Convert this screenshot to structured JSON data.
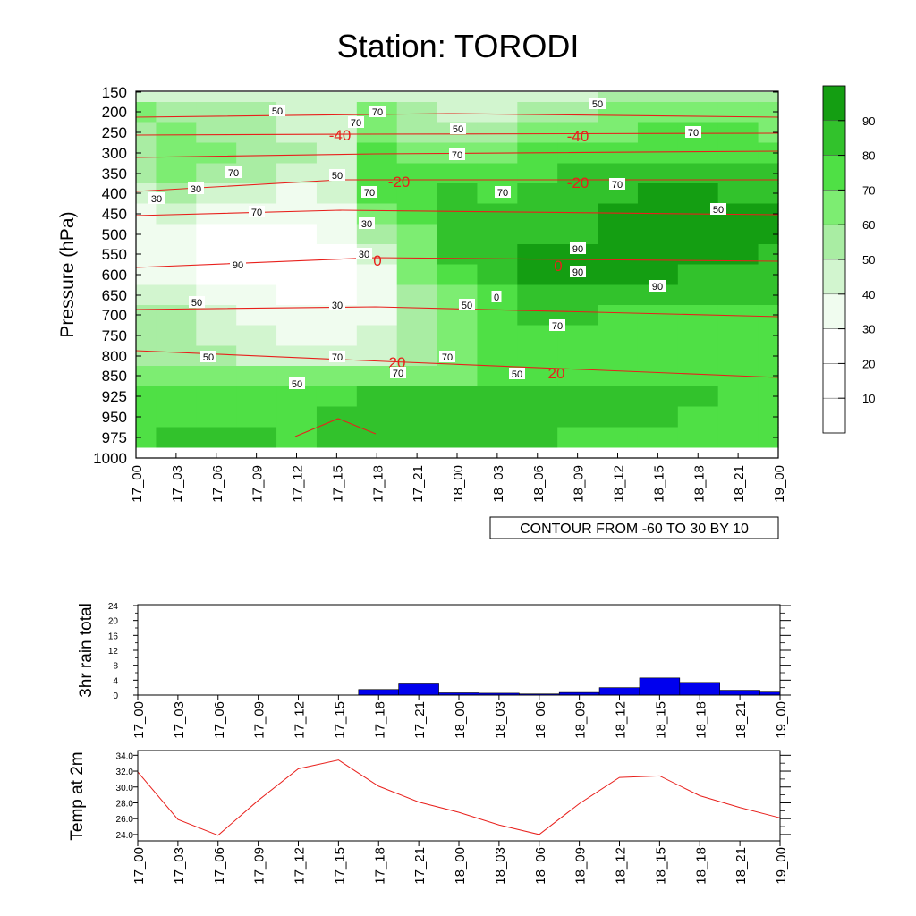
{
  "title": "Station: TORODI",
  "time_labels": [
    "17_00",
    "17_03",
    "17_06",
    "17_09",
    "17_12",
    "17_15",
    "17_18",
    "17_21",
    "18_00",
    "18_03",
    "18_06",
    "18_09",
    "18_12",
    "18_15",
    "18_18",
    "18_21",
    "19_00"
  ],
  "colors": {
    "rh_levels": [
      "#ffffff",
      "#ffffff",
      "#ffffff",
      "#f0fcef",
      "#d2f5cf",
      "#a9eda3",
      "#7ded72",
      "#4fe045",
      "#32c22c",
      "#149e12"
    ],
    "temp_contour": "#e8201c",
    "rain_bar": "#0000ee",
    "temp_line": "#e8201c"
  },
  "chart_data": [
    {
      "type": "heatmap",
      "title": "Station: TORODI",
      "ylabel": "Pressure (hPa)",
      "x": [
        "17_00",
        "17_03",
        "17_06",
        "17_09",
        "17_12",
        "17_15",
        "17_18",
        "17_21",
        "18_00",
        "18_03",
        "18_06",
        "18_09",
        "18_12",
        "18_15",
        "18_18",
        "18_21",
        "19_00"
      ],
      "y": [
        150,
        200,
        250,
        300,
        350,
        400,
        450,
        500,
        550,
        600,
        650,
        700,
        750,
        800,
        850,
        925,
        950,
        975,
        1000
      ],
      "ytick_labels": [
        "150",
        "200",
        "250",
        "300",
        "350",
        "400",
        "450",
        "500",
        "550",
        "600",
        "650",
        "700",
        "750",
        "800",
        "850",
        "925",
        "950",
        "975",
        "1000"
      ],
      "rh_values": [
        [
          40,
          45,
          48,
          45,
          42,
          40,
          45,
          42,
          40,
          42,
          45,
          48,
          52,
          50,
          50,
          52,
          50
        ],
        [
          62,
          55,
          52,
          50,
          48,
          45,
          62,
          50,
          48,
          48,
          52,
          55,
          60,
          62,
          65,
          62,
          60
        ],
        [
          58,
          62,
          55,
          52,
          48,
          42,
          65,
          58,
          55,
          58,
          62,
          65,
          68,
          72,
          72,
          70,
          68
        ],
        [
          55,
          65,
          60,
          55,
          52,
          45,
          72,
          65,
          62,
          65,
          70,
          72,
          75,
          78,
          78,
          76,
          75
        ],
        [
          52,
          60,
          55,
          50,
          45,
          45,
          75,
          72,
          75,
          76,
          78,
          82,
          85,
          88,
          86,
          84,
          82
        ],
        [
          45,
          50,
          45,
          40,
          38,
          40,
          70,
          75,
          82,
          78,
          80,
          84,
          88,
          90,
          90,
          88,
          86
        ],
        [
          38,
          40,
          36,
          30,
          32,
          38,
          62,
          72,
          82,
          80,
          82,
          86,
          90,
          92,
          92,
          91,
          90
        ],
        [
          30,
          32,
          28,
          25,
          28,
          30,
          52,
          68,
          80,
          82,
          85,
          88,
          90,
          92,
          92,
          91,
          90
        ],
        [
          32,
          30,
          26,
          22,
          24,
          22,
          40,
          65,
          80,
          85,
          90,
          92,
          92,
          92,
          92,
          90,
          88
        ],
        [
          38,
          32,
          28,
          24,
          22,
          22,
          34,
          60,
          76,
          84,
          92,
          92,
          90,
          90,
          88,
          86,
          84
        ],
        [
          48,
          40,
          34,
          30,
          28,
          28,
          34,
          52,
          66,
          78,
          86,
          86,
          84,
          84,
          82,
          80,
          80
        ],
        [
          55,
          50,
          44,
          36,
          32,
          32,
          38,
          50,
          60,
          72,
          80,
          80,
          78,
          78,
          78,
          76,
          78
        ],
        [
          58,
          52,
          46,
          40,
          36,
          36,
          40,
          52,
          60,
          72,
          76,
          76,
          76,
          76,
          76,
          76,
          78
        ],
        [
          55,
          54,
          50,
          46,
          44,
          46,
          48,
          56,
          62,
          70,
          72,
          74,
          74,
          76,
          78,
          76,
          78
        ],
        [
          65,
          66,
          64,
          60,
          60,
          62,
          64,
          66,
          68,
          72,
          74,
          75,
          76,
          78,
          78,
          76,
          78
        ],
        [
          70,
          74,
          75,
          75,
          76,
          78,
          84,
          86,
          86,
          84,
          82,
          80,
          80,
          82,
          80,
          76,
          74
        ],
        [
          74,
          76,
          78,
          78,
          78,
          80,
          84,
          86,
          86,
          84,
          82,
          80,
          80,
          80,
          78,
          76,
          74
        ],
        [
          78,
          82,
          84,
          80,
          78,
          80,
          80,
          82,
          84,
          82,
          80,
          78,
          78,
          78,
          76,
          76,
          74
        ],
        [
          0,
          0,
          0,
          0,
          0,
          0,
          0,
          0,
          0,
          0,
          0,
          0,
          0,
          0,
          0,
          0,
          0
        ]
      ],
      "legend_levels": [
        "10",
        "20",
        "30",
        "40",
        "50",
        "60",
        "70",
        "80",
        "90"
      ],
      "temperature_contour_values": [
        "-40",
        "-40",
        "-20",
        "-20",
        "0",
        "0",
        "20",
        "20"
      ],
      "rh_contour_labels": [
        "50",
        "70",
        "50",
        "50",
        "70",
        "70",
        "70",
        "70",
        "70",
        "70",
        "70",
        "50",
        "30",
        "30",
        "70",
        "30",
        "50",
        "90",
        "90",
        "90",
        "90",
        "30",
        "0",
        "50",
        "50",
        "30",
        "70",
        "70",
        "50",
        "50",
        "50",
        "70",
        "70"
      ],
      "footer": "CONTOUR FROM -60 TO 30 BY 10"
    },
    {
      "type": "bar",
      "ylabel": "3hr rain total",
      "categories": [
        "17_00",
        "17_03",
        "17_06",
        "17_09",
        "17_12",
        "17_15",
        "17_18",
        "17_21",
        "18_00",
        "18_03",
        "18_06",
        "18_09",
        "18_12",
        "18_15",
        "18_18",
        "18_21",
        "19_00"
      ],
      "values": [
        0,
        0,
        0,
        0,
        0,
        0,
        1.5,
        3.0,
        0.6,
        0.5,
        0.3,
        0.7,
        2.0,
        4.6,
        3.4,
        1.3,
        0.8
      ],
      "ylim": [
        0,
        24
      ],
      "ytick_labels": [
        "0",
        "4",
        "8",
        "12",
        "16",
        "20",
        "24"
      ]
    },
    {
      "type": "line",
      "ylabel": "Temp at 2m",
      "x": [
        "17_00",
        "17_03",
        "17_06",
        "17_09",
        "17_12",
        "17_15",
        "17_18",
        "17_21",
        "18_00",
        "18_03",
        "18_06",
        "18_09",
        "18_12",
        "18_15",
        "18_18",
        "18_21",
        "19_00"
      ],
      "values": [
        31.9,
        25.9,
        23.9,
        28.3,
        32.3,
        33.4,
        30.1,
        28.1,
        26.8,
        25.2,
        24.0,
        27.9,
        31.2,
        31.4,
        28.9,
        27.4,
        26.1
      ],
      "ylim": [
        23.2,
        34.6
      ],
      "ytick_labels": [
        "24.0",
        "26.0",
        "28.0",
        "30.0",
        "32.0",
        "34.0"
      ]
    }
  ]
}
